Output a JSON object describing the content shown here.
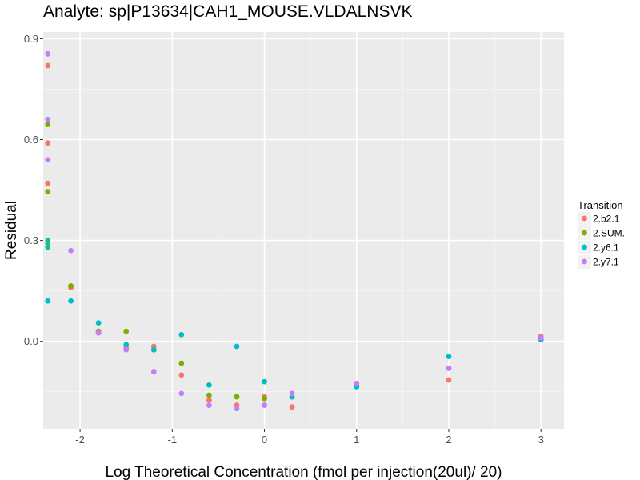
{
  "chart_data": {
    "type": "scatter",
    "title": "Analyte: sp|P13634|CAH1_MOUSE.VLDALNSVK",
    "xlabel": "Log Theoretical Concentration (fmol per injection(20ul)/ 20)",
    "ylabel": "Residual",
    "xlim": [
      -2.4,
      3.25
    ],
    "ylim": [
      -0.26,
      0.92
    ],
    "x_ticks": [
      -2,
      -1,
      0,
      1,
      2,
      3
    ],
    "x_tick_labels": [
      "-2",
      "-1",
      "0",
      "1",
      "2",
      "3"
    ],
    "y_ticks": [
      0.0,
      0.3,
      0.6,
      0.9
    ],
    "y_tick_labels": [
      "0.0",
      "0.3",
      "0.6",
      "0.9"
    ],
    "legend_title": "Transition",
    "legend_position": "right",
    "series": [
      {
        "name": "2.b2.1",
        "color": "#F8766D",
        "points": [
          [
            -2.35,
            0.82
          ],
          [
            -2.35,
            0.59
          ],
          [
            -2.35,
            0.47
          ],
          [
            -2.1,
            0.16
          ],
          [
            -1.8,
            0.03
          ],
          [
            -1.5,
            -0.02
          ],
          [
            -1.2,
            -0.015
          ],
          [
            -0.9,
            -0.1
          ],
          [
            -0.6,
            -0.175
          ],
          [
            -0.3,
            -0.19
          ],
          [
            0.0,
            -0.165
          ],
          [
            0.3,
            -0.195
          ],
          [
            1.0,
            -0.125
          ],
          [
            2.0,
            -0.115
          ],
          [
            3.0,
            0.015
          ]
        ]
      },
      {
        "name": "2.SUM.",
        "color": "#7CAE00",
        "points": [
          [
            -2.35,
            0.645
          ],
          [
            -2.35,
            0.445
          ],
          [
            -2.35,
            0.29
          ],
          [
            -2.1,
            0.165
          ],
          [
            -1.8,
            0.03
          ],
          [
            -1.5,
            0.03
          ],
          [
            -1.2,
            -0.025
          ],
          [
            -0.9,
            -0.065
          ],
          [
            -0.6,
            -0.16
          ],
          [
            -0.3,
            -0.165
          ],
          [
            0.0,
            -0.17
          ],
          [
            0.3,
            -0.165
          ],
          [
            1.0,
            -0.13
          ],
          [
            2.0,
            -0.08
          ],
          [
            3.0,
            0.01
          ]
        ]
      },
      {
        "name": "2.y6.1",
        "color": "#00BFC4",
        "points": [
          [
            -2.35,
            0.3
          ],
          [
            -2.35,
            0.28
          ],
          [
            -2.35,
            0.12
          ],
          [
            -2.1,
            0.12
          ],
          [
            -1.8,
            0.055
          ],
          [
            -1.5,
            -0.01
          ],
          [
            -1.2,
            -0.025
          ],
          [
            -0.9,
            0.02
          ],
          [
            -0.6,
            -0.13
          ],
          [
            -0.3,
            -0.015
          ],
          [
            0.0,
            -0.12
          ],
          [
            0.3,
            -0.165
          ],
          [
            1.0,
            -0.135
          ],
          [
            2.0,
            -0.045
          ],
          [
            3.0,
            0.005
          ]
        ]
      },
      {
        "name": "2.y7.1",
        "color": "#C77CFF",
        "points": [
          [
            -2.35,
            0.855
          ],
          [
            -2.35,
            0.66
          ],
          [
            -2.35,
            0.54
          ],
          [
            -2.1,
            0.27
          ],
          [
            -1.8,
            0.025
          ],
          [
            -1.5,
            -0.025
          ],
          [
            -1.2,
            -0.09
          ],
          [
            -0.9,
            -0.155
          ],
          [
            -0.6,
            -0.19
          ],
          [
            -0.3,
            -0.2
          ],
          [
            0.0,
            -0.19
          ],
          [
            0.3,
            -0.155
          ],
          [
            1.0,
            -0.125
          ],
          [
            2.0,
            -0.08
          ],
          [
            3.0,
            0.01
          ]
        ]
      }
    ]
  }
}
